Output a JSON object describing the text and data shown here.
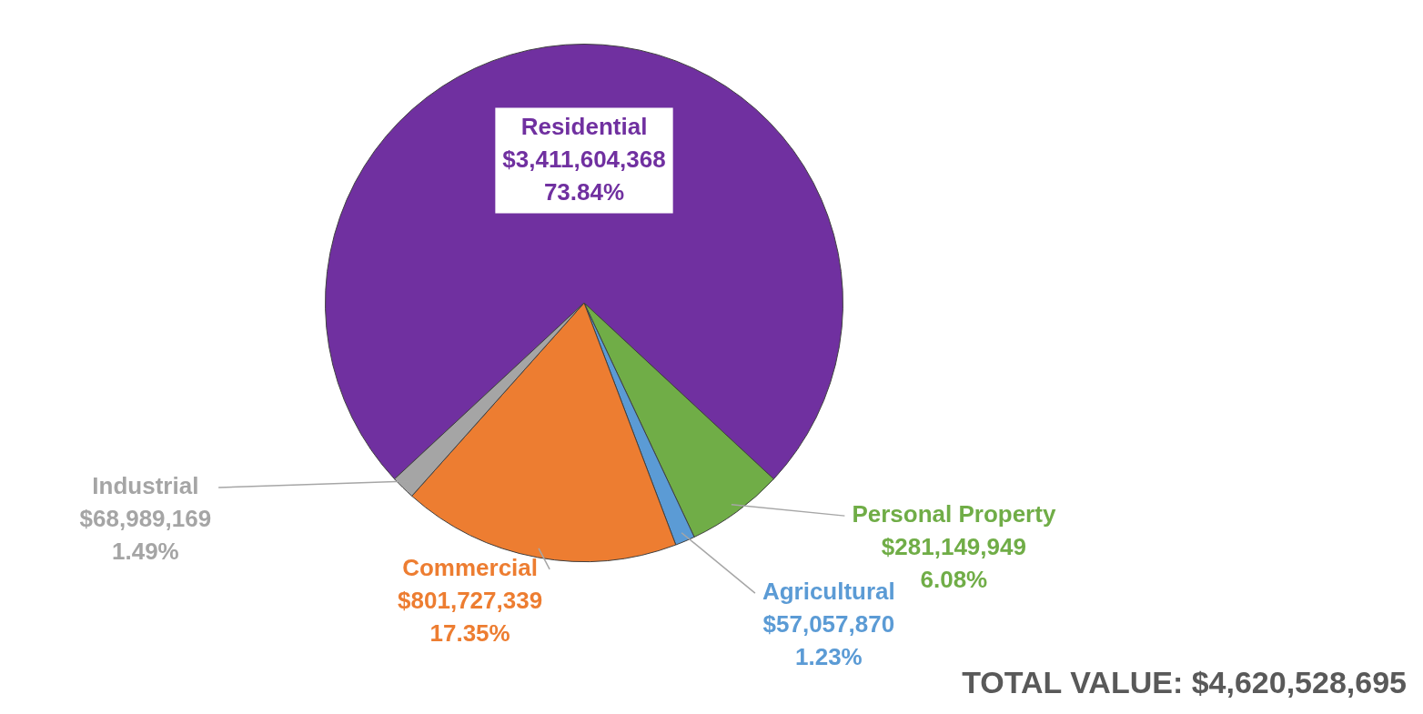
{
  "chart_data": {
    "type": "pie",
    "categories": [
      "Residential",
      "Personal Property",
      "Agricultural",
      "Commercial",
      "Industrial"
    ],
    "values": [
      3411604368,
      281149949,
      57057870,
      801727339,
      68989169
    ],
    "colors": [
      "#7030a0",
      "#70ad47",
      "#5b9bd5",
      "#ed7d31",
      "#a5a5a5"
    ],
    "value_labels": [
      "$3,411,604,368\n73.84%",
      "$281,149,949\n6.08%",
      "$57,057,870\n1.23%",
      "$801,727,339\n17.35%",
      "$68,989,169\n1.49%"
    ],
    "annotations": [
      "TOTAL VALUE: $4,620,528,695"
    ]
  }
}
